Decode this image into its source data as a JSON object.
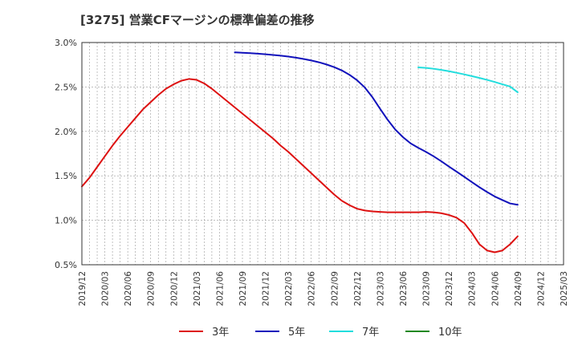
{
  "chart_data": {
    "type": "line",
    "title": "[3275]  営業CFマージンの標準偏差の推移",
    "xlabel": "",
    "ylabel": "",
    "ylim": [
      0.5,
      3.0
    ],
    "y_ticks": [
      "0.5%",
      "1.0%",
      "1.5%",
      "2.0%",
      "2.5%",
      "3.0%"
    ],
    "y_tick_values": [
      0.5,
      1.0,
      1.5,
      2.0,
      2.5,
      3.0
    ],
    "x_ticks": [
      "2019/12",
      "2020/03",
      "2020/06",
      "2020/09",
      "2020/12",
      "2021/03",
      "2021/06",
      "2021/09",
      "2021/12",
      "2022/03",
      "2022/06",
      "2022/09",
      "2022/12",
      "2023/03",
      "2023/06",
      "2023/09",
      "2023/12",
      "2024/03",
      "2024/06",
      "2024/09",
      "2024/12",
      "2025/03"
    ],
    "grid": true,
    "legend_position": "bottom",
    "series": [
      {
        "name": "3年",
        "color": "#dd1111",
        "x": [
          "2019/12",
          "2020/01",
          "2020/02",
          "2020/03",
          "2020/04",
          "2020/05",
          "2020/06",
          "2020/07",
          "2020/08",
          "2020/09",
          "2020/10",
          "2020/11",
          "2020/12",
          "2021/01",
          "2021/02",
          "2021/03",
          "2021/04",
          "2021/05",
          "2021/06",
          "2021/07",
          "2021/08",
          "2021/09",
          "2021/10",
          "2021/11",
          "2021/12",
          "2022/01",
          "2022/02",
          "2022/03",
          "2022/04",
          "2022/05",
          "2022/06",
          "2022/07",
          "2022/08",
          "2022/09",
          "2022/10",
          "2022/11",
          "2022/12",
          "2023/01",
          "2023/02",
          "2023/03",
          "2023/04",
          "2023/05",
          "2023/06",
          "2023/07",
          "2023/08",
          "2023/09",
          "2023/10",
          "2023/11",
          "2023/12",
          "2024/01",
          "2024/02",
          "2024/03",
          "2024/04",
          "2024/05",
          "2024/06",
          "2024/07",
          "2024/08",
          "2024/09"
        ],
        "values": [
          1.38,
          1.48,
          1.6,
          1.72,
          1.84,
          1.95,
          2.05,
          2.15,
          2.25,
          2.33,
          2.41,
          2.48,
          2.53,
          2.57,
          2.59,
          2.58,
          2.54,
          2.48,
          2.41,
          2.34,
          2.27,
          2.2,
          2.13,
          2.06,
          1.99,
          1.92,
          1.84,
          1.77,
          1.69,
          1.61,
          1.53,
          1.45,
          1.37,
          1.29,
          1.22,
          1.17,
          1.13,
          1.11,
          1.1,
          1.095,
          1.09,
          1.09,
          1.09,
          1.09,
          1.09,
          1.095,
          1.09,
          1.08,
          1.06,
          1.03,
          0.97,
          0.86,
          0.73,
          0.66,
          0.64,
          0.66,
          0.73,
          0.82
        ]
      },
      {
        "name": "5年",
        "color": "#1111bb",
        "x": [
          "2021/08",
          "2021/09",
          "2021/10",
          "2021/11",
          "2021/12",
          "2022/01",
          "2022/02",
          "2022/03",
          "2022/04",
          "2022/05",
          "2022/06",
          "2022/07",
          "2022/08",
          "2022/09",
          "2022/10",
          "2022/11",
          "2022/12",
          "2023/01",
          "2023/02",
          "2023/03",
          "2023/04",
          "2023/05",
          "2023/06",
          "2023/07",
          "2023/08",
          "2023/09",
          "2023/10",
          "2023/11",
          "2023/12",
          "2024/01",
          "2024/02",
          "2024/03",
          "2024/04",
          "2024/05",
          "2024/06",
          "2024/07",
          "2024/08",
          "2024/09"
        ],
        "values": [
          2.89,
          2.885,
          2.88,
          2.875,
          2.868,
          2.86,
          2.852,
          2.842,
          2.83,
          2.815,
          2.798,
          2.778,
          2.753,
          2.723,
          2.686,
          2.637,
          2.575,
          2.495,
          2.385,
          2.255,
          2.13,
          2.02,
          1.935,
          1.865,
          1.815,
          1.77,
          1.72,
          1.665,
          1.605,
          1.548,
          1.49,
          1.43,
          1.372,
          1.318,
          1.268,
          1.228,
          1.19,
          1.175
        ]
      },
      {
        "name": "7年",
        "color": "#22dddd",
        "x": [
          "2023/08",
          "2023/09",
          "2023/10",
          "2023/11",
          "2023/12",
          "2024/01",
          "2024/02",
          "2024/03",
          "2024/04",
          "2024/05",
          "2024/06",
          "2024/07",
          "2024/08",
          "2024/09"
        ],
        "values": [
          2.72,
          2.715,
          2.705,
          2.692,
          2.677,
          2.66,
          2.642,
          2.622,
          2.602,
          2.58,
          2.556,
          2.53,
          2.505,
          2.44
        ]
      },
      {
        "name": "10年",
        "color": "#228822",
        "x": [],
        "values": []
      }
    ]
  }
}
